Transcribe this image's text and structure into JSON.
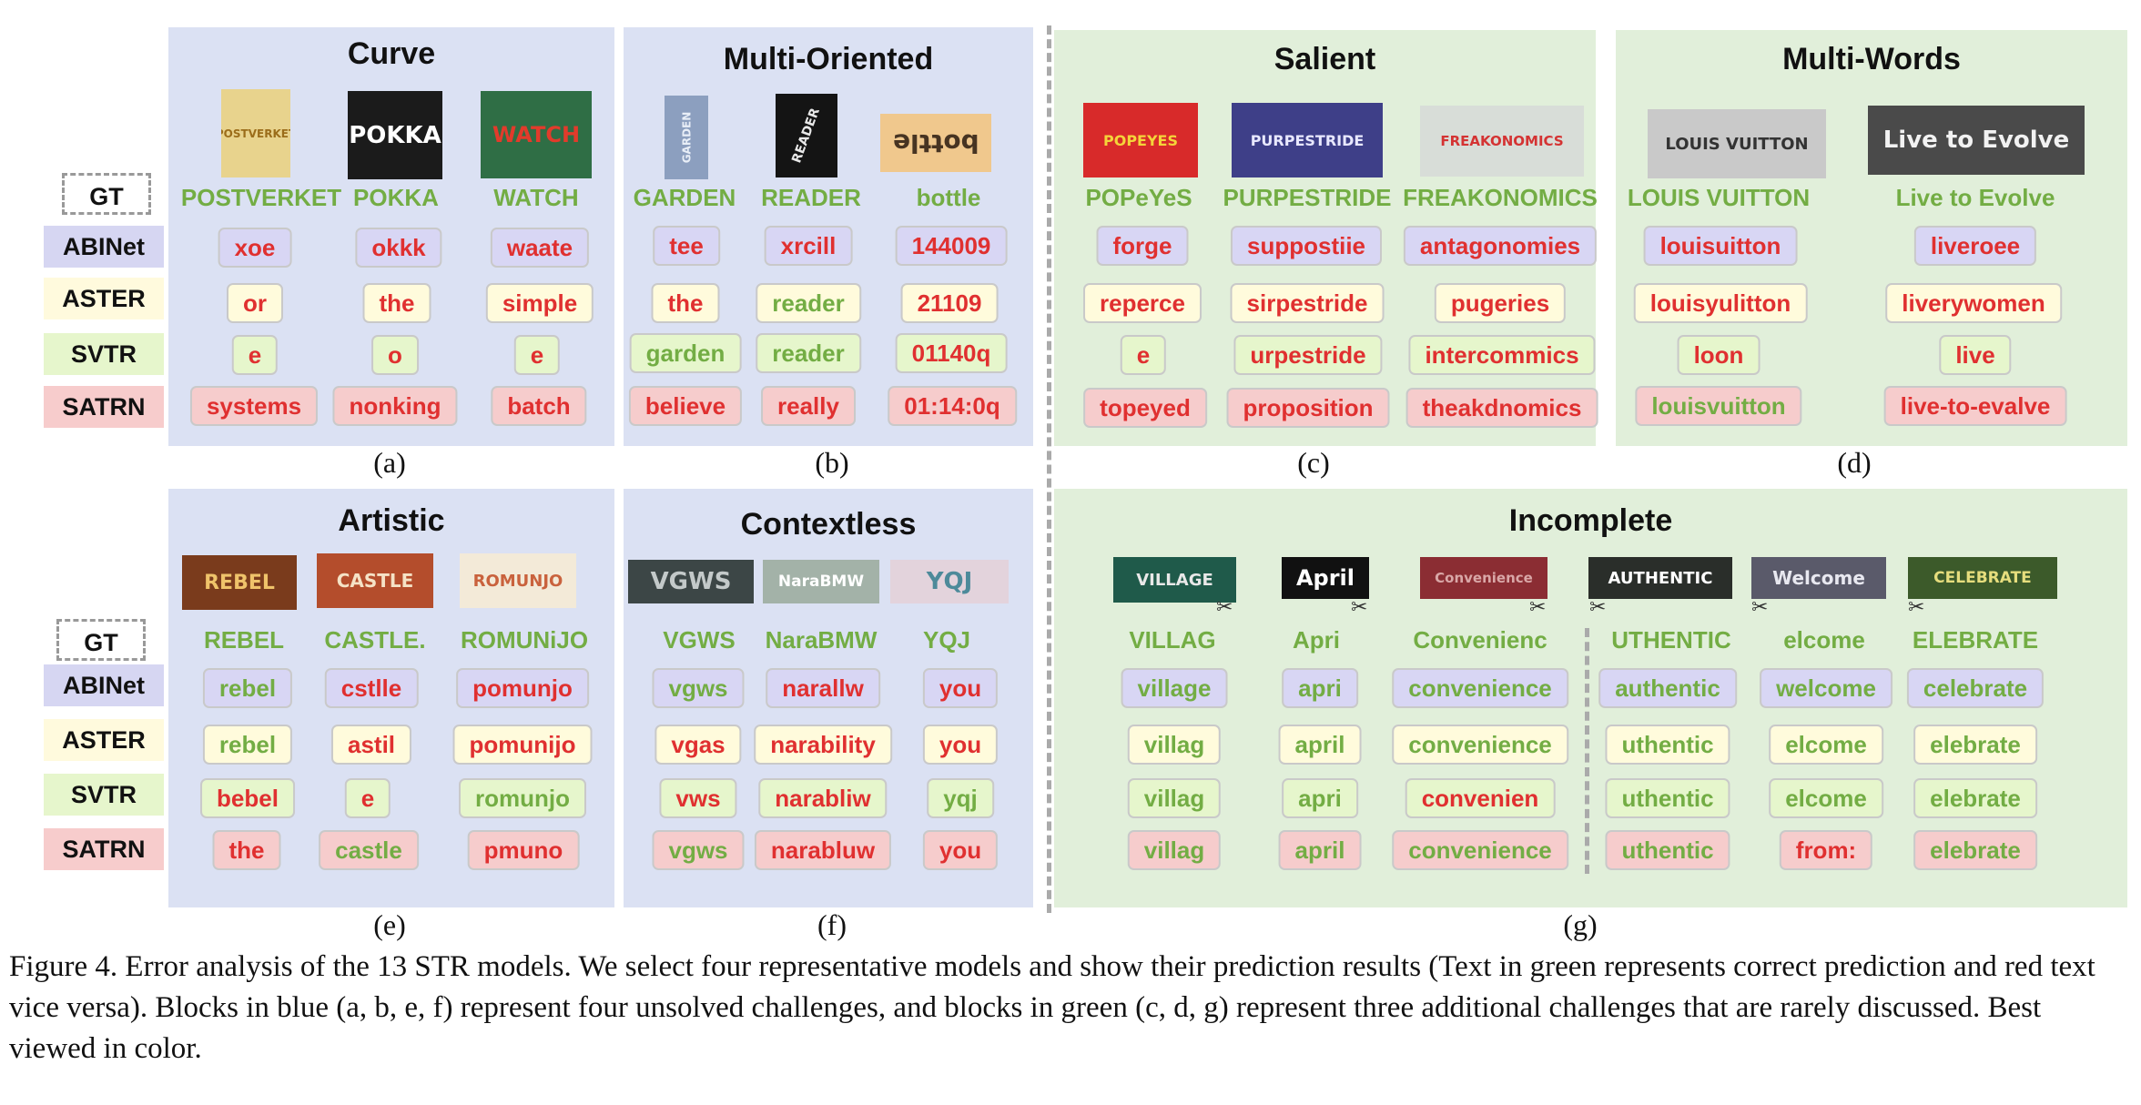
{
  "row_labels": {
    "gt": "GT",
    "abinet": "ABINet",
    "aster": "ASTER",
    "svtr": "SVTR",
    "satrn": "SATRN"
  },
  "panels": {
    "a": {
      "title": "Curve",
      "label": "(a)"
    },
    "b": {
      "title": "Multi-Oriented",
      "label": "(b)"
    },
    "c": {
      "title": "Salient",
      "label": "(c)"
    },
    "d": {
      "title": "Multi-Words",
      "label": "(d)"
    },
    "e": {
      "title": "Artistic",
      "label": "(e)"
    },
    "f": {
      "title": "Contextless",
      "label": "(f)"
    },
    "g": {
      "title": "Incomplete",
      "label": "(g)"
    }
  },
  "samples": {
    "a0": {
      "gt": "POSTVERKET",
      "abinet": "xoe",
      "aster": "or",
      "svtr": "e",
      "satrn": "systems"
    },
    "a1": {
      "gt": "POKKA",
      "abinet": "okkk",
      "aster": "the",
      "svtr": "o",
      "satrn": "nonking"
    },
    "a2": {
      "gt": "WATCH",
      "abinet": "waate",
      "aster": "simple",
      "svtr": "e",
      "satrn": "batch"
    },
    "b0": {
      "gt": "GARDEN",
      "abinet": "tee",
      "aster": "the",
      "svtr": "garden",
      "satrn": "believe"
    },
    "b1": {
      "gt": "READER",
      "abinet": "xrcill",
      "aster": "reader",
      "svtr": "reader",
      "satrn": "really"
    },
    "b2": {
      "gt": "bottle",
      "abinet": "144009",
      "aster": "21109",
      "svtr": "01140q",
      "satrn": "01:14:0q"
    },
    "c0": {
      "gt": "POPeYeS",
      "abinet": "forge",
      "aster": "reperce",
      "svtr": "e",
      "satrn": "topeyed"
    },
    "c1": {
      "gt": "PURPESTRIDE",
      "abinet": "suppostiie",
      "aster": "sirpestride",
      "svtr": "urpestride",
      "satrn": "proposition"
    },
    "c2": {
      "gt": "FREAKONOMICS",
      "abinet": "antagonomies",
      "aster": "pugeries",
      "svtr": "intercommics",
      "satrn": "theakdnomics"
    },
    "d0": {
      "gt": "LOUIS VUITTON",
      "abinet": "louisuitton",
      "aster": "louisyulitton",
      "svtr": "loon",
      "satrn": "louisvuitton"
    },
    "d1": {
      "gt": "Live to Evolve",
      "abinet": "liveroee",
      "aster": "liverywomen",
      "svtr": "live",
      "satrn": "live-to-evalve"
    },
    "e0": {
      "gt": "REBEL",
      "abinet": "rebel",
      "aster": "rebel",
      "svtr": "bebel",
      "satrn": "the"
    },
    "e1": {
      "gt": "CASTLE.",
      "abinet": "cstlle",
      "aster": "astil",
      "svtr": "e",
      "satrn": "castle"
    },
    "e2": {
      "gt": "ROMUNiJO",
      "abinet": "pomunjo",
      "aster": "pomunijo",
      "svtr": "romunjo",
      "satrn": "pmuno"
    },
    "f0": {
      "gt": "VGWS",
      "abinet": "vgws",
      "aster": "vgas",
      "svtr": "vws",
      "satrn": "vgws"
    },
    "f1": {
      "gt": "NaraBMW",
      "abinet": "narallw",
      "aster": "narability",
      "svtr": "narabliw",
      "satrn": "narabluw"
    },
    "f2": {
      "gt": "YQJ",
      "abinet": "you",
      "aster": "you",
      "svtr": "yqj",
      "satrn": "you"
    },
    "g0": {
      "gt": "VILLAG",
      "abinet": "village",
      "aster": "villag",
      "svtr": "villag",
      "satrn": "villag"
    },
    "g1": {
      "gt": "Apri",
      "abinet": "apri",
      "aster": "april",
      "svtr": "apri",
      "satrn": "april"
    },
    "g2": {
      "gt": "Convenienc",
      "abinet": "convenience",
      "aster": "convenience",
      "svtr": "convenien",
      "satrn": "convenience"
    },
    "g3": {
      "gt": "UTHENTIC",
      "abinet": "authentic",
      "aster": "uthentic",
      "svtr": "uthentic",
      "satrn": "uthentic"
    },
    "g4": {
      "gt": "elcome",
      "abinet": "welcome",
      "aster": "elcome",
      "svtr": "elcome",
      "satrn": "from:"
    },
    "g5": {
      "gt": "ELEBRATE",
      "abinet": "celebrate",
      "aster": "elebrate",
      "svtr": "elebrate",
      "satrn": "elebrate"
    }
  },
  "thumb_text": {
    "a0": "POSTVERKET",
    "a1": "POKKA",
    "a2": "WATCH",
    "b0": "GARDEN",
    "b1": "READER",
    "b2": "bottle",
    "c0": "POPEYES",
    "c1": "PURPESTRIDE",
    "c2": "FREAKONOMICS",
    "d0": "LOUIS VUITTON",
    "d1": "Live to Evolve",
    "e0": "REBEL",
    "e1": "CASTLE",
    "e2": "ROMUNJO",
    "f0": "VGWS",
    "f1": "NaraBMW",
    "f2": "YQJ",
    "g0": "VILLAGE",
    "g1": "April",
    "g2": "Convenience",
    "g3": "AUTHENTIC",
    "g4": "Welcome",
    "g5": "CELEBRATE"
  },
  "caption": "Figure 4. Error analysis of the 13 STR models.  We select four representative models and show their prediction results (Text in green represents correct prediction and red text vice versa). Blocks in blue (a, b, e, f) represent four unsolved challenges, and blocks in green (c, d, g) represent three additional challenges that are rarely discussed. Best viewed in color.",
  "colors": {
    "correct": "#73ad44",
    "wrong": "#e03030",
    "blue_block": "#dbe1f3",
    "green_block": "#e1efda"
  }
}
